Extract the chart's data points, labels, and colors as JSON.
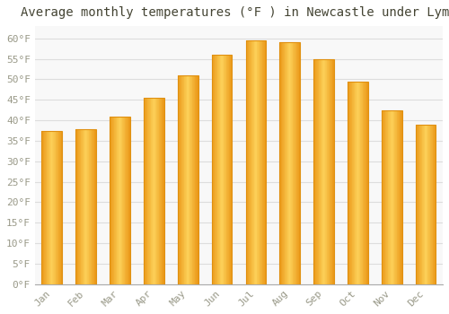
{
  "title": "Average monthly temperatures (°F ) in Newcastle under Lyme",
  "months": [
    "Jan",
    "Feb",
    "Mar",
    "Apr",
    "May",
    "Jun",
    "Jul",
    "Aug",
    "Sep",
    "Oct",
    "Nov",
    "Dec"
  ],
  "values": [
    37.5,
    37.8,
    41.0,
    45.5,
    51.0,
    56.0,
    59.5,
    59.0,
    55.0,
    49.5,
    42.5,
    39.0
  ],
  "bar_color_top": "#FFCC44",
  "bar_color_bottom": "#F0A020",
  "bar_edge_color": "#E09010",
  "background_color": "#FFFFFF",
  "plot_bg_color": "#F8F8F8",
  "grid_color": "#DDDDDD",
  "ylim": [
    0,
    63
  ],
  "yticks": [
    0,
    5,
    10,
    15,
    20,
    25,
    30,
    35,
    40,
    45,
    50,
    55,
    60
  ],
  "title_fontsize": 10,
  "tick_fontsize": 8,
  "tick_font_color": "#999988",
  "title_color": "#444433"
}
